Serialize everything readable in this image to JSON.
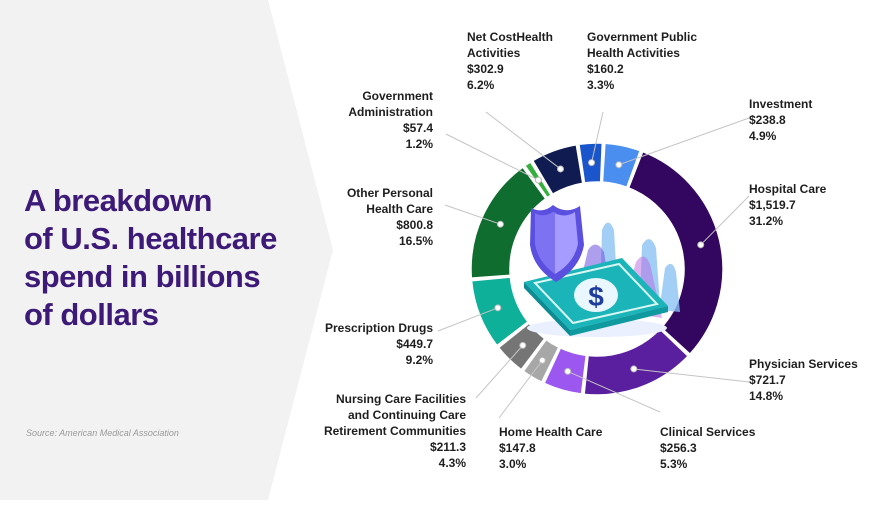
{
  "headline": [
    "A breakdown",
    "of U.S. healthcare",
    "spend in billions",
    "of dollars"
  ],
  "source": "Source:  American Medical Association",
  "colors": {
    "title": "#3d1a78",
    "panel": "#f2f2f2",
    "text": "#1e1e1e"
  },
  "chart_data": {
    "type": "pie",
    "variant": "donut",
    "unit": "billions of dollars",
    "slices": [
      {
        "name": [
          "Investment"
        ],
        "value": "$238.8",
        "amount": 238.8,
        "percent": "4.9%",
        "color": "#4a8ef0"
      },
      {
        "name": [
          "Hospital Care"
        ],
        "value": "$1,519.7",
        "amount": 1519.7,
        "percent": "31.2%",
        "color": "#33065f"
      },
      {
        "name": [
          "Physician Services"
        ],
        "value": "$721.7",
        "amount": 721.7,
        "percent": "14.8%",
        "color": "#5a1f9e"
      },
      {
        "name": [
          "Clinical Services"
        ],
        "value": "$256.3",
        "amount": 256.3,
        "percent": "5.3%",
        "color": "#9b57f0"
      },
      {
        "name": [
          "Home Health Care"
        ],
        "value": "$147.8",
        "amount": 147.8,
        "percent": "3.0%",
        "color": "#a7a7a7"
      },
      {
        "name": [
          "Nursing Care Facilities",
          "and Continuing Care",
          "Retirement Communities"
        ],
        "value": "$211.3",
        "amount": 211.3,
        "percent": "4.3%",
        "color": "#757575"
      },
      {
        "name": [
          "Prescription Drugs"
        ],
        "value": "$449.7",
        "amount": 449.7,
        "percent": "9.2%",
        "color": "#0fb09a"
      },
      {
        "name": [
          "Other Personal",
          "Health Care"
        ],
        "value": "$800.8",
        "amount": 800.8,
        "percent": "16.5%",
        "color": "#0f6e2f"
      },
      {
        "name": [
          "Government",
          "Administration"
        ],
        "value": "$57.4",
        "amount": 57.4,
        "percent": "1.2%",
        "color": "#35b03e"
      },
      {
        "name": [
          "Net CostHealth",
          "Activities"
        ],
        "value": "$302.9",
        "amount": 302.9,
        "percent": "6.2%",
        "color": "#101b52"
      },
      {
        "name": [
          "Government Public",
          "Health Activities"
        ],
        "value": "$160.2",
        "amount": 160.2,
        "percent": "3.3%",
        "color": "#1a55cc"
      }
    ]
  }
}
